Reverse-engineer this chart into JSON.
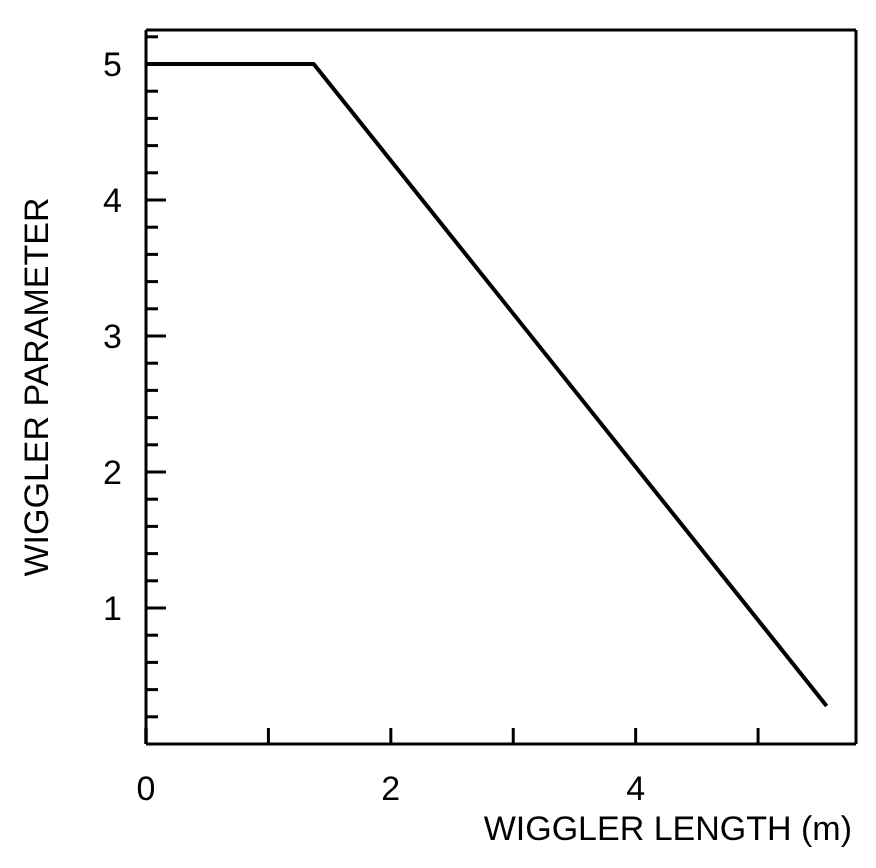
{
  "chart_data": {
    "type": "line",
    "xlabel": "WIGGLER LENGTH (m)",
    "ylabel": "WIGGLER PARAMETER",
    "series": [
      {
        "color": "#000000",
        "x": [
          0,
          1.37,
          5.56
        ],
        "values": [
          5.0,
          5.0,
          0.28
        ]
      }
    ],
    "xlim": [
      0,
      5.8
    ],
    "ylim": [
      0,
      5.25
    ],
    "xticks": [
      0,
      {
        "value": 1,
        "label": null
      },
      2,
      {
        "value": 3,
        "label": null
      },
      4,
      {
        "value": 5,
        "label": null
      }
    ],
    "yticks": [
      {
        "value": 0.2,
        "label": null
      },
      {
        "value": 0.4,
        "label": null
      },
      {
        "value": 0.6,
        "label": null
      },
      {
        "value": 0.8,
        "label": null
      },
      1,
      {
        "value": 1.2,
        "label": null
      },
      {
        "value": 1.4,
        "label": null
      },
      {
        "value": 1.6,
        "label": null
      },
      {
        "value": 1.8,
        "label": null
      },
      2,
      {
        "value": 2.2,
        "label": null
      },
      {
        "value": 2.4,
        "label": null
      },
      {
        "value": 2.6,
        "label": null
      },
      {
        "value": 2.8,
        "label": null
      },
      3,
      {
        "value": 3.2,
        "label": null
      },
      {
        "value": 3.4,
        "label": null
      },
      {
        "value": 3.6,
        "label": null
      },
      {
        "value": 3.8,
        "label": null
      },
      4,
      {
        "value": 4.2,
        "label": null
      },
      {
        "value": 4.4,
        "label": null
      },
      {
        "value": 4.6,
        "label": null
      },
      {
        "value": 4.8,
        "label": null
      },
      5,
      {
        "value": 5.2,
        "label": null
      }
    ],
    "marker": "none",
    "line_style": "solid"
  }
}
